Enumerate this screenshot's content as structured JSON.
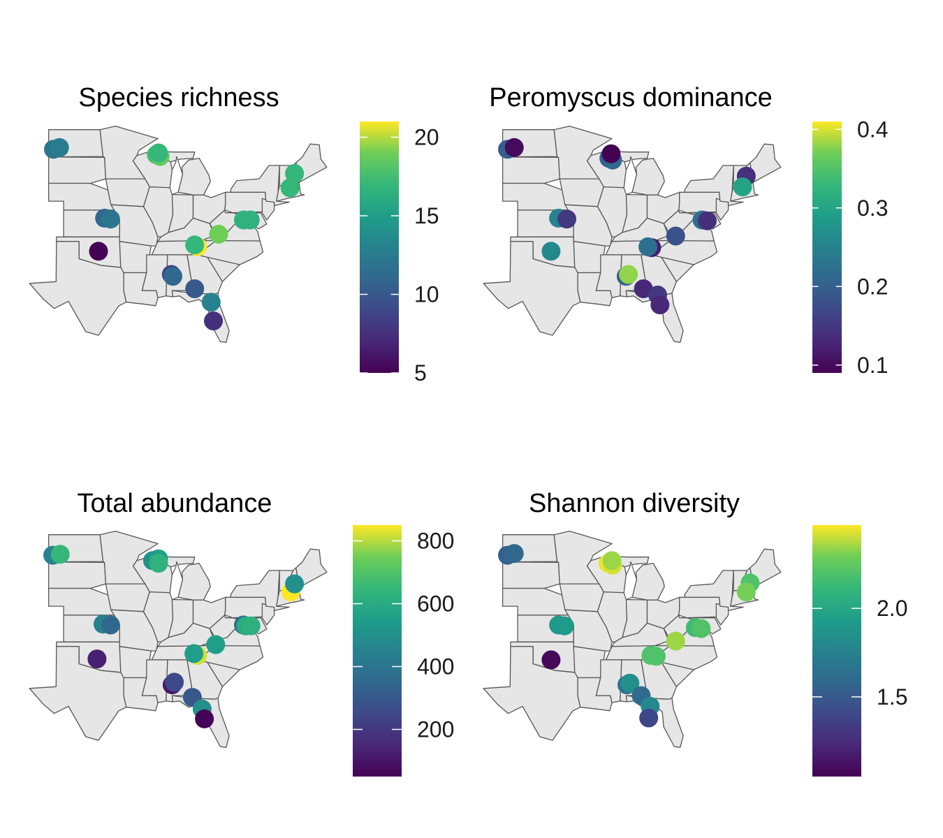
{
  "chart_data": [
    {
      "type": "scatter",
      "subtype": "map",
      "title": "Species richness",
      "colorscale": "viridis",
      "colorbar": {
        "min": 5,
        "max": 21,
        "ticks": [
          5,
          10,
          15,
          20
        ],
        "tick_labels": [
          "5",
          "10",
          "15",
          "20"
        ]
      },
      "points": [
        {
          "lon": -103.4,
          "lat": 46.8,
          "value": 12
        },
        {
          "lon": -102.6,
          "lat": 47.0,
          "value": 12.5
        },
        {
          "lon": -89.7,
          "lat": 46.2,
          "value": 17.5
        },
        {
          "lon": -89.2,
          "lat": 46.0,
          "value": 18.5
        },
        {
          "lon": -89.4,
          "lat": 46.4,
          "value": 17
        },
        {
          "lon": -71.3,
          "lat": 44.1,
          "value": 17
        },
        {
          "lon": -71.9,
          "lat": 42.5,
          "value": 17
        },
        {
          "lon": -96.6,
          "lat": 39.1,
          "value": 11
        },
        {
          "lon": -95.8,
          "lat": 39.0,
          "value": 12
        },
        {
          "lon": -78.1,
          "lat": 38.9,
          "value": 16.5
        },
        {
          "lon": -77.2,
          "lat": 38.9,
          "value": 16.5
        },
        {
          "lon": -81.4,
          "lat": 37.3,
          "value": 19
        },
        {
          "lon": -84.2,
          "lat": 35.9,
          "value": 21
        },
        {
          "lon": -84.6,
          "lat": 36.1,
          "value": 17
        },
        {
          "lon": -97.4,
          "lat": 35.4,
          "value": 5
        },
        {
          "lon": -87.7,
          "lat": 32.8,
          "value": 8.5
        },
        {
          "lon": -87.5,
          "lat": 32.6,
          "value": 11
        },
        {
          "lon": -84.6,
          "lat": 31.2,
          "value": 10
        },
        {
          "lon": -82.4,
          "lat": 29.7,
          "value": 13
        },
        {
          "lon": -82.1,
          "lat": 27.6,
          "value": 7.5
        }
      ]
    },
    {
      "type": "scatter",
      "subtype": "map",
      "title": "Peromyscus dominance",
      "colorscale": "viridis",
      "colorbar": {
        "min": 0.09,
        "max": 0.41,
        "ticks": [
          0.1,
          0.2,
          0.3,
          0.4
        ],
        "tick_labels": [
          "0.1",
          "0.2",
          "0.3",
          "0.4"
        ]
      },
      "points": [
        {
          "lon": -103.4,
          "lat": 46.8,
          "value": 0.2
        },
        {
          "lon": -102.5,
          "lat": 47.0,
          "value": 0.1
        },
        {
          "lon": -89.9,
          "lat": 45.8,
          "value": 0.2
        },
        {
          "lon": -89.4,
          "lat": 45.6,
          "value": 0.21
        },
        {
          "lon": -89.6,
          "lat": 46.3,
          "value": 0.09
        },
        {
          "lon": -71.6,
          "lat": 43.8,
          "value": 0.14
        },
        {
          "lon": -72.1,
          "lat": 42.6,
          "value": 0.3
        },
        {
          "lon": -96.6,
          "lat": 39.1,
          "value": 0.25
        },
        {
          "lon": -95.5,
          "lat": 39.0,
          "value": 0.15
        },
        {
          "lon": -77.5,
          "lat": 38.9,
          "value": 0.22
        },
        {
          "lon": -76.8,
          "lat": 38.8,
          "value": 0.14
        },
        {
          "lon": -81.0,
          "lat": 37.1,
          "value": 0.18
        },
        {
          "lon": -84.2,
          "lat": 35.8,
          "value": 0.12
        },
        {
          "lon": -84.7,
          "lat": 35.9,
          "value": 0.22
        },
        {
          "lon": -97.6,
          "lat": 35.4,
          "value": 0.26
        },
        {
          "lon": -87.6,
          "lat": 32.6,
          "value": 0.2
        },
        {
          "lon": -87.3,
          "lat": 32.8,
          "value": 0.38
        },
        {
          "lon": -85.3,
          "lat": 31.2,
          "value": 0.13
        },
        {
          "lon": -83.4,
          "lat": 30.5,
          "value": 0.15
        },
        {
          "lon": -83.1,
          "lat": 29.4,
          "value": 0.13
        }
      ]
    },
    {
      "type": "scatter",
      "subtype": "map",
      "title": "Total abundance",
      "colorscale": "viridis",
      "colorbar": {
        "min": 50,
        "max": 850,
        "ticks": [
          200,
          400,
          600,
          800
        ],
        "tick_labels": [
          "200",
          "400",
          "600",
          "800"
        ]
      },
      "points": [
        {
          "lon": -103.5,
          "lat": 46.7,
          "value": 450
        },
        {
          "lon": -102.5,
          "lat": 46.8,
          "value": 650
        },
        {
          "lon": -90.2,
          "lat": 46.1,
          "value": 500
        },
        {
          "lon": -89.4,
          "lat": 46.3,
          "value": 550
        },
        {
          "lon": -89.4,
          "lat": 45.8,
          "value": 630
        },
        {
          "lon": -71.8,
          "lat": 42.6,
          "value": 850
        },
        {
          "lon": -71.3,
          "lat": 43.5,
          "value": 500
        },
        {
          "lon": -96.8,
          "lat": 39.0,
          "value": 450
        },
        {
          "lon": -95.8,
          "lat": 38.9,
          "value": 350
        },
        {
          "lon": -78.1,
          "lat": 38.9,
          "value": 350
        },
        {
          "lon": -77.8,
          "lat": 38.8,
          "value": 600
        },
        {
          "lon": -77.1,
          "lat": 38.8,
          "value": 620
        },
        {
          "lon": -81.8,
          "lat": 36.7,
          "value": 550
        },
        {
          "lon": -84.2,
          "lat": 35.5,
          "value": 820
        },
        {
          "lon": -84.7,
          "lat": 35.7,
          "value": 550
        },
        {
          "lon": -97.6,
          "lat": 35.1,
          "value": 130
        },
        {
          "lon": -87.6,
          "lat": 32.2,
          "value": 110
        },
        {
          "lon": -87.3,
          "lat": 32.5,
          "value": 250
        },
        {
          "lon": -84.9,
          "lat": 30.8,
          "value": 300
        },
        {
          "lon": -83.6,
          "lat": 29.5,
          "value": 500
        },
        {
          "lon": -83.3,
          "lat": 28.4,
          "value": 60
        }
      ]
    },
    {
      "type": "scatter",
      "subtype": "map",
      "title": "Shannon diversity",
      "colorscale": "viridis",
      "colorbar": {
        "min": 1.05,
        "max": 2.47,
        "ticks": [
          1.5,
          2.0
        ],
        "tick_labels": [
          "1.5",
          "2.0"
        ]
      },
      "points": [
        {
          "lon": -103.4,
          "lat": 46.7,
          "value": 1.55
        },
        {
          "lon": -102.5,
          "lat": 46.9,
          "value": 1.58
        },
        {
          "lon": -90.0,
          "lat": 45.8,
          "value": 2.45
        },
        {
          "lon": -89.4,
          "lat": 45.6,
          "value": 2.42
        },
        {
          "lon": -89.5,
          "lat": 46.1,
          "value": 2.35
        },
        {
          "lon": -71.1,
          "lat": 43.6,
          "value": 2.2
        },
        {
          "lon": -71.6,
          "lat": 42.6,
          "value": 2.3
        },
        {
          "lon": -96.6,
          "lat": 38.9,
          "value": 1.9
        },
        {
          "lon": -95.8,
          "lat": 38.8,
          "value": 1.92
        },
        {
          "lon": -78.4,
          "lat": 38.6,
          "value": 2.15
        },
        {
          "lon": -77.6,
          "lat": 38.5,
          "value": 2.2
        },
        {
          "lon": -81.0,
          "lat": 37.1,
          "value": 2.35
        },
        {
          "lon": -83.6,
          "lat": 35.4,
          "value": 2.2
        },
        {
          "lon": -84.3,
          "lat": 35.5,
          "value": 2.2
        },
        {
          "lon": -97.6,
          "lat": 35.0,
          "value": 1.08
        },
        {
          "lon": -87.5,
          "lat": 32.2,
          "value": 1.65
        },
        {
          "lon": -87.1,
          "lat": 32.4,
          "value": 1.85
        },
        {
          "lon": -85.6,
          "lat": 31.0,
          "value": 1.6
        },
        {
          "lon": -84.4,
          "lat": 29.8,
          "value": 1.8
        },
        {
          "lon": -84.6,
          "lat": 28.5,
          "value": 1.4
        }
      ]
    }
  ]
}
